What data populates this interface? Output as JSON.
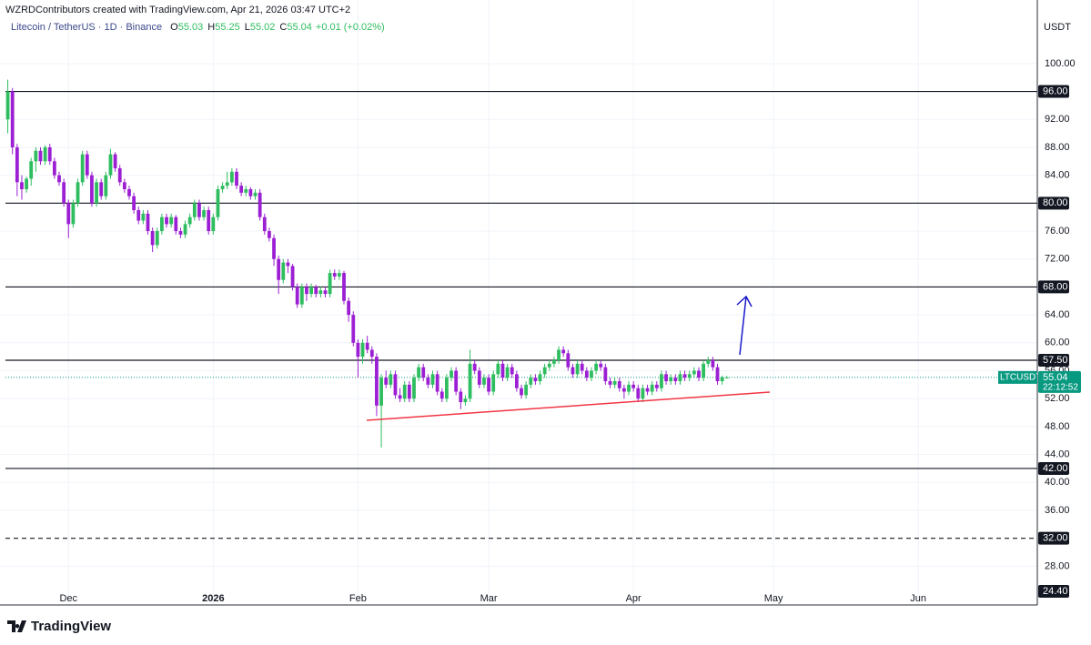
{
  "header": "WZRDContributors created with TradingView.com, Apr 21, 2026 03:47 UTC+2",
  "brand": "TradingView",
  "chart_data": {
    "type": "candlestick",
    "legend": {
      "symbol": "Litecoin / TetherUS · 1D · Binance",
      "fields": [
        {
          "label": "O",
          "value": 55.03
        },
        {
          "label": "H",
          "value": 55.25
        },
        {
          "label": "L",
          "value": 55.02
        },
        {
          "label": "C",
          "value": 55.04
        }
      ],
      "change": "+0.01",
      "change_pct": "(+0.02%)"
    },
    "currency": "USDT",
    "up_color": "#2ebd5f",
    "down_color": "#9c1fd4",
    "grid": true,
    "ylim": [
      24.4,
      107.8
    ],
    "yticks": [
      {
        "value": 100,
        "label": "100.00"
      },
      {
        "value": 92,
        "label": "92.00"
      },
      {
        "value": 88,
        "label": "88.00"
      },
      {
        "value": 84,
        "label": "84.00"
      },
      {
        "value": 76,
        "label": "76.00"
      },
      {
        "value": 72,
        "label": "72.00"
      },
      {
        "value": 64,
        "label": "64.00"
      },
      {
        "value": 60,
        "label": "60.00"
      },
      {
        "value": 56,
        "label": "56.00"
      },
      {
        "value": 52,
        "label": "52.00"
      },
      {
        "value": 48,
        "label": "48.00"
      },
      {
        "value": 44,
        "label": "44.00"
      },
      {
        "value": 40,
        "label": "40.00"
      },
      {
        "value": 36,
        "label": "36.00"
      },
      {
        "value": 28,
        "label": "28.00"
      }
    ],
    "levels": [
      {
        "value": 96,
        "label": "96.00",
        "style": "solid"
      },
      {
        "value": 80,
        "label": "80.00",
        "style": "solid"
      },
      {
        "value": 68,
        "label": "68.00",
        "style": "solid"
      },
      {
        "value": 57.5,
        "label": "57.50",
        "style": "solid"
      },
      {
        "value": 42,
        "label": "42.00",
        "style": "solid"
      },
      {
        "value": 32,
        "label": "32.00",
        "style": "dashed"
      },
      {
        "value": 24.4,
        "label": "24.40",
        "style": "none"
      }
    ],
    "last": {
      "symbol": "LTCUSDT",
      "value": 55.04,
      "countdown": "22:12:52",
      "color": "#089981"
    },
    "categories": [
      null,
      null,
      null,
      null,
      null,
      null,
      null,
      null,
      null,
      null,
      null,
      null,
      null,
      "Dec",
      null,
      null,
      null,
      null,
      null,
      null,
      null,
      null,
      null,
      null,
      null,
      null,
      null,
      null,
      null,
      null,
      null,
      null,
      null,
      null,
      null,
      null,
      null,
      null,
      null,
      null,
      null,
      null,
      null,
      null,
      "2026",
      null,
      null,
      null,
      null,
      null,
      null,
      null,
      null,
      null,
      null,
      null,
      null,
      null,
      null,
      null,
      null,
      null,
      null,
      null,
      null,
      null,
      null,
      null,
      null,
      null,
      null,
      null,
      null,
      null,
      null,
      "Feb",
      null,
      null,
      null,
      null,
      null,
      null,
      null,
      null,
      null,
      null,
      null,
      null,
      null,
      null,
      null,
      null,
      null,
      null,
      null,
      null,
      null,
      null,
      null,
      null,
      null,
      null,
      null,
      "Mar",
      null,
      null,
      null,
      null,
      null,
      null,
      null,
      null,
      null,
      null,
      null,
      null,
      null,
      null,
      null,
      null,
      null,
      null,
      null,
      null,
      null,
      null,
      null,
      null,
      null,
      null,
      null,
      null,
      null,
      null,
      "Apr",
      null,
      null,
      null,
      null,
      null,
      null,
      null,
      null,
      null,
      null,
      null,
      null,
      null,
      null,
      null,
      null,
      null,
      null,
      null,
      null,
      null,
      null,
      null,
      null,
      null,
      null,
      null,
      null,
      null,
      "May",
      null,
      null,
      null,
      null,
      null,
      null,
      null,
      null,
      null,
      null,
      null,
      null,
      null,
      null,
      null,
      null,
      null,
      null,
      null,
      null,
      null,
      null,
      null,
      null,
      null,
      null,
      null,
      null,
      null,
      null,
      "Jun",
      null,
      null,
      null,
      null,
      null,
      null,
      null,
      null,
      null,
      null,
      null,
      null,
      null,
      null,
      null,
      null,
      null,
      null,
      null,
      null,
      null,
      null,
      null,
      null,
      null
    ],
    "ohlc": [
      [
        92,
        97.7,
        90,
        96
      ],
      [
        96,
        96.5,
        87,
        88
      ],
      [
        88,
        88.5,
        81,
        83
      ],
      [
        83,
        84,
        80.5,
        82
      ],
      [
        82,
        83.8,
        81.5,
        83.5
      ],
      [
        83.5,
        86.5,
        82.5,
        86
      ],
      [
        86,
        88,
        84.5,
        87.5
      ],
      [
        87.5,
        88,
        85.5,
        86
      ],
      [
        86,
        88.3,
        85.5,
        88
      ],
      [
        88,
        88.5,
        85.5,
        86
      ],
      [
        86,
        86.5,
        83.5,
        84
      ],
      [
        84,
        84.5,
        82.5,
        83
      ],
      [
        83,
        83.5,
        79.5,
        80
      ],
      [
        80,
        80.5,
        75,
        77
      ],
      [
        77,
        80.5,
        76.5,
        80
      ],
      [
        80,
        83.5,
        79.5,
        83
      ],
      [
        83,
        87.5,
        82.5,
        87
      ],
      [
        87,
        87.5,
        83.5,
        84
      ],
      [
        84,
        84.5,
        79.5,
        80
      ],
      [
        80,
        83.5,
        79.5,
        83
      ],
      [
        83,
        83.5,
        80.5,
        81
      ],
      [
        81,
        84.5,
        80.5,
        84
      ],
      [
        84,
        87.8,
        83.5,
        87
      ],
      [
        87,
        87.3,
        84.5,
        85
      ],
      [
        85,
        85.5,
        82.5,
        83
      ],
      [
        83,
        83.5,
        81.5,
        82
      ],
      [
        82,
        82.5,
        80.5,
        81
      ],
      [
        81,
        81.5,
        78.5,
        79
      ],
      [
        79,
        79.5,
        77,
        77.5
      ],
      [
        77.5,
        79,
        77,
        78.5
      ],
      [
        78.5,
        79,
        75.5,
        76
      ],
      [
        76,
        76.5,
        73,
        74
      ],
      [
        74,
        76.5,
        73.5,
        76
      ],
      [
        76,
        78.5,
        75.5,
        78
      ],
      [
        78,
        78.5,
        76.5,
        77
      ],
      [
        77,
        78.5,
        76.5,
        78
      ],
      [
        78,
        78.3,
        75.5,
        76
      ],
      [
        76,
        76.5,
        75,
        75.5
      ],
      [
        75.5,
        77.5,
        75,
        77
      ],
      [
        77,
        78.5,
        76.5,
        78
      ],
      [
        78,
        80.5,
        77.5,
        80
      ],
      [
        80,
        80.5,
        77.5,
        78
      ],
      [
        78,
        79.5,
        77.5,
        79
      ],
      [
        79,
        79.5,
        75.5,
        76
      ],
      [
        76,
        78.5,
        75.5,
        78
      ],
      [
        78,
        82.5,
        77.5,
        82
      ],
      [
        82,
        83,
        81.5,
        82.5
      ],
      [
        82.5,
        84.5,
        82,
        83
      ],
      [
        83,
        85,
        82.5,
        84.5
      ],
      [
        84.5,
        85,
        82,
        82.5
      ],
      [
        82.5,
        83,
        81,
        81.5
      ],
      [
        81.5,
        82.5,
        81,
        82
      ],
      [
        82,
        82.3,
        80.5,
        81
      ],
      [
        81,
        82,
        80.5,
        81.5
      ],
      [
        81.5,
        82,
        77.5,
        78
      ],
      [
        78,
        78.5,
        75.5,
        76
      ],
      [
        76,
        76.5,
        74.5,
        75
      ],
      [
        75,
        75.5,
        71,
        72
      ],
      [
        72,
        72.5,
        67,
        69
      ],
      [
        69,
        72,
        68.5,
        71.5
      ],
      [
        71.5,
        72,
        70,
        71
      ],
      [
        71,
        71.3,
        67.5,
        68
      ],
      [
        68,
        68.5,
        65,
        65.5
      ],
      [
        65.5,
        68.5,
        65,
        68
      ],
      [
        68,
        68.5,
        66,
        67
      ],
      [
        67,
        68.5,
        66.5,
        68
      ],
      [
        68,
        68.3,
        66.5,
        67
      ],
      [
        67,
        68,
        66.5,
        67.5
      ],
      [
        67.5,
        68,
        66.5,
        67
      ],
      [
        67,
        70.5,
        66.5,
        70
      ],
      [
        70,
        70.5,
        69,
        69.5
      ],
      [
        69.5,
        70.5,
        69,
        70
      ],
      [
        70,
        70.3,
        65.5,
        66
      ],
      [
        66,
        66.5,
        63,
        64
      ],
      [
        64,
        64.5,
        59.5,
        60
      ],
      [
        60,
        60.5,
        55,
        58
      ],
      [
        58,
        60.5,
        57,
        60
      ],
      [
        60,
        61,
        58.5,
        59
      ],
      [
        59,
        59.5,
        57,
        58
      ],
      [
        58,
        58.5,
        49.5,
        51
      ],
      [
        51,
        55.5,
        45,
        55
      ],
      [
        55,
        56,
        53.5,
        54
      ],
      [
        54,
        56,
        53.5,
        55.5
      ],
      [
        55.5,
        56,
        52,
        52.5
      ],
      [
        52.5,
        53.5,
        51.5,
        52
      ],
      [
        52,
        54.5,
        51.5,
        54
      ],
      [
        54,
        54.5,
        51.5,
        52
      ],
      [
        52,
        55.5,
        51.5,
        55
      ],
      [
        55,
        57,
        54.5,
        56.5
      ],
      [
        56.5,
        57,
        54.5,
        55
      ],
      [
        55,
        55.5,
        53.5,
        54
      ],
      [
        54,
        56,
        53.5,
        55.5
      ],
      [
        55.5,
        56,
        52.5,
        53
      ],
      [
        53,
        53.5,
        51.5,
        52
      ],
      [
        52,
        55.5,
        51.5,
        55
      ],
      [
        55,
        56.5,
        54.5,
        56
      ],
      [
        56,
        56.5,
        52.5,
        53
      ],
      [
        53,
        53.5,
        50.5,
        51.5
      ],
      [
        51.5,
        52.5,
        51,
        52
      ],
      [
        52,
        59,
        51.5,
        57
      ],
      [
        57,
        57.5,
        55.5,
        56
      ],
      [
        56,
        56.5,
        53.5,
        54
      ],
      [
        54,
        55.5,
        53.5,
        55
      ],
      [
        55,
        55.5,
        52.5,
        53
      ],
      [
        53,
        56,
        52.5,
        55.5
      ],
      [
        55.5,
        57.5,
        55,
        57
      ],
      [
        57,
        57.5,
        54.5,
        55
      ],
      [
        55,
        57,
        54.5,
        56.5
      ],
      [
        56.5,
        57,
        55,
        55.5
      ],
      [
        55.5,
        56,
        53,
        53.5
      ],
      [
        53.5,
        54,
        52,
        52.5
      ],
      [
        52.5,
        54.5,
        52,
        54
      ],
      [
        54,
        55.5,
        53.5,
        55
      ],
      [
        55,
        55.5,
        54,
        54.5
      ],
      [
        54.5,
        56,
        54,
        55.5
      ],
      [
        55.5,
        57,
        55,
        56.5
      ],
      [
        56.5,
        57.5,
        56,
        57
      ],
      [
        57,
        58,
        56.5,
        57.5
      ],
      [
        57.5,
        59.5,
        57,
        59
      ],
      [
        59,
        59.5,
        58,
        58.5
      ],
      [
        58.5,
        59,
        56,
        56.5
      ],
      [
        56.5,
        57,
        55,
        55.5
      ],
      [
        55.5,
        57.5,
        55,
        57
      ],
      [
        57,
        57.5,
        55.5,
        56
      ],
      [
        56,
        56.5,
        54.5,
        55
      ],
      [
        55,
        56.5,
        54.5,
        56
      ],
      [
        56,
        57.5,
        55.5,
        57
      ],
      [
        57,
        57.5,
        56,
        56.5
      ],
      [
        56.5,
        57,
        54,
        54.5
      ],
      [
        54.5,
        55,
        53.5,
        54
      ],
      [
        54,
        55,
        53.5,
        54.5
      ],
      [
        54.5,
        55,
        53,
        53.5
      ],
      [
        53.5,
        54,
        52,
        53
      ],
      [
        53,
        54.5,
        52.5,
        54
      ],
      [
        54,
        54.5,
        53,
        53.5
      ],
      [
        53.5,
        54,
        51.5,
        52
      ],
      [
        52,
        54,
        51.5,
        53.5
      ],
      [
        53.5,
        54,
        52.5,
        53
      ],
      [
        53,
        54.5,
        52.5,
        54
      ],
      [
        54,
        54.5,
        53,
        53.5
      ],
      [
        53.5,
        56,
        53,
        55.5
      ],
      [
        55.5,
        56,
        54,
        54.5
      ],
      [
        54.5,
        55.5,
        54,
        55
      ],
      [
        55,
        55.5,
        54,
        54.5
      ],
      [
        54.5,
        56,
        54,
        55.5
      ],
      [
        55.5,
        56,
        54.5,
        55
      ],
      [
        55,
        56,
        54.5,
        55.5
      ],
      [
        55.5,
        56.5,
        55,
        56
      ],
      [
        56,
        56.5,
        54.5,
        55
      ],
      [
        55,
        57.5,
        54.5,
        57
      ],
      [
        57,
        58,
        56.5,
        57.5
      ],
      [
        57.5,
        58,
        56,
        56.5
      ],
      [
        56.5,
        57,
        54,
        54.5
      ],
      [
        54.5,
        55.3,
        54,
        55.03
      ],
      [
        55.03,
        55.25,
        55.02,
        55.04
      ],
      null,
      null,
      null,
      null,
      null,
      null,
      null,
      null,
      null,
      null,
      null,
      null,
      null,
      null,
      null,
      null,
      null,
      null,
      null,
      null,
      null,
      null,
      null,
      null,
      null,
      null,
      null,
      null,
      null,
      null,
      null,
      null,
      null,
      null,
      null,
      null,
      null,
      null,
      null,
      null,
      null,
      null,
      null,
      null,
      null,
      null,
      null,
      null,
      null,
      null,
      null,
      null,
      null,
      null,
      null,
      null,
      null,
      null,
      null,
      null,
      null,
      null,
      null,
      null,
      null,
      null
    ]
  }
}
